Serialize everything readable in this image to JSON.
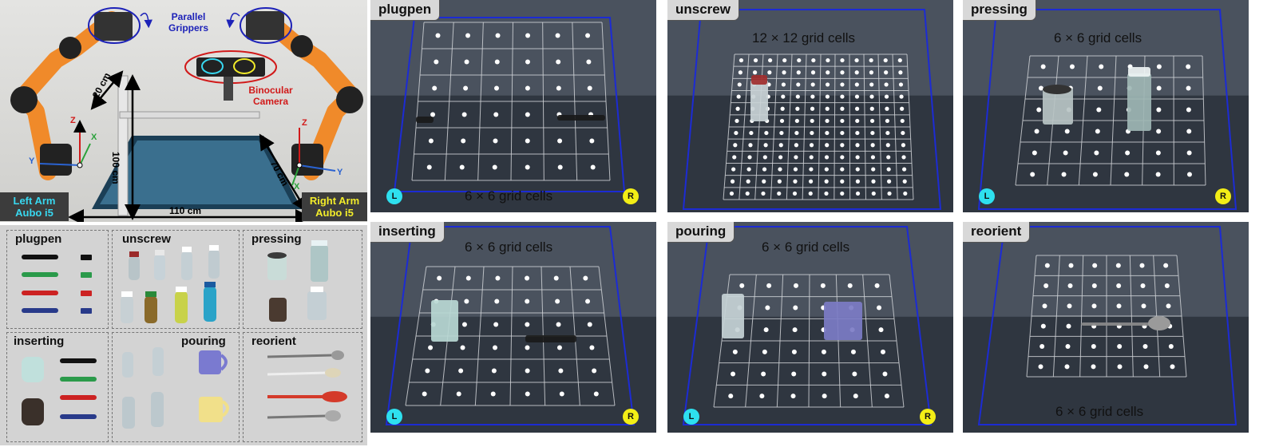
{
  "setup": {
    "grippers_label": "Parallel\nGrippers",
    "camera_label": "Binocular\nCamera",
    "dim_20": "20 cm",
    "dim_100": "100 cm",
    "dim_70": "70 cm",
    "dim_110": "110 cm",
    "left_arm": "Left Arm\nAubo i5",
    "right_arm": "Right Arm\nAubo i5",
    "axis_z": "Z",
    "axis_x": "X",
    "axis_y": "Y",
    "colors": {
      "left_arm_text": "#38d8f0",
      "right_arm_text": "#f2ec2a",
      "annotation_blue": "#1d22b8",
      "camera_red": "#d11a1a"
    }
  },
  "objects": [
    {
      "title": "plugpen"
    },
    {
      "title": "unscrew"
    },
    {
      "title": "pressing"
    },
    {
      "title": "inserting"
    },
    {
      "title": "pouring"
    },
    {
      "title": "reorient"
    }
  ],
  "panels": [
    {
      "tag": "plugpen",
      "grid_label": "6 × 6 grid cells",
      "n": 6,
      "left": "L",
      "right": "R"
    },
    {
      "tag": "unscrew",
      "grid_label": "12 × 12 grid cells",
      "n": 12
    },
    {
      "tag": "pressing",
      "grid_label": "6 × 6 grid cells",
      "n": 6,
      "left": "L",
      "right": "R"
    },
    {
      "tag": "inserting",
      "grid_label": "6 × 6 grid cells",
      "n": 6,
      "left": "L",
      "right": "R"
    },
    {
      "tag": "pouring",
      "grid_label": "6 × 6 grid cells",
      "n": 6,
      "left": "L",
      "right": "R"
    },
    {
      "tag": "reorient",
      "grid_label": "6 × 6 grid cells",
      "n": 6
    }
  ],
  "colors": {
    "mat": "#2f3640",
    "grid_line": "#cfd2d6",
    "dot": "#ffffff",
    "boundary": "#1c2bd4"
  }
}
